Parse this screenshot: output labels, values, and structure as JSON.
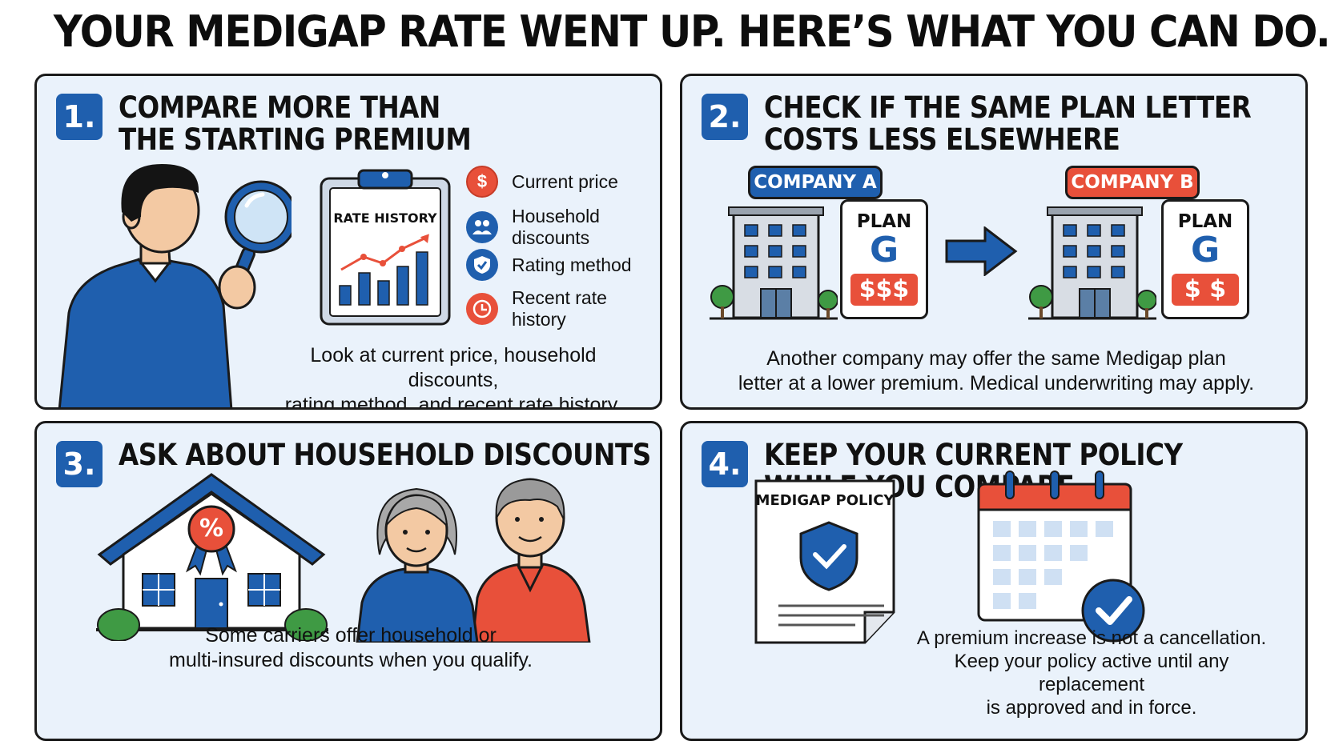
{
  "title": "YOUR MEDIGAP RATE WENT UP. HERE’S WHAT YOU CAN DO.",
  "colors": {
    "accent_blue": "#1f5fae",
    "accent_red": "#e8503a",
    "panel_bg": "#eaf2fb",
    "green": "#3f9a44"
  },
  "panels": [
    {
      "number": "1.",
      "title_line1": "COMPARE MORE THAN",
      "title_line2": "THE STARTING PREMIUM",
      "clipboard_label": "RATE HISTORY",
      "legend": [
        {
          "icon": "dollar-icon",
          "glyph": "$",
          "label": "Current price",
          "color": "#e8503a"
        },
        {
          "icon": "people-icon",
          "glyph": "",
          "label": "Household discounts",
          "color": "#1f5fae"
        },
        {
          "icon": "shield-check-icon",
          "glyph": "",
          "label": "Rating method",
          "color": "#1f5fae"
        },
        {
          "icon": "clock-icon",
          "glyph": "",
          "label": "Recent rate history",
          "color": "#e8503a"
        }
      ],
      "caption_line1": "Look at current price, household discounts,",
      "caption_line2": "rating method, and recent rate history."
    },
    {
      "number": "2.",
      "title_line1": "CHECK IF THE SAME PLAN LETTER",
      "title_line2": "COSTS LESS ELSEWHERE",
      "company_a": "COMPANY A",
      "company_b": "COMPANY B",
      "plan_label": "PLAN",
      "plan_letter": "G",
      "price_a": "$$$",
      "price_b": "$ $",
      "caption_line1": "Another company may offer the same Medigap plan",
      "caption_line2": "letter at a lower premium. Medical underwriting may apply."
    },
    {
      "number": "3.",
      "title_line1": "ASK ABOUT HOUSEHOLD DISCOUNTS",
      "badge_glyph": "%",
      "caption_line1": "Some carriers offer household or",
      "caption_line2": "multi-insured discounts when you qualify."
    },
    {
      "number": "4.",
      "title_line1": "KEEP YOUR CURRENT POLICY",
      "title_line2": "WHILE YOU COMPARE",
      "document_label": "MEDIGAP POLICY",
      "caption_line1": "A premium increase is not a cancellation.",
      "caption_line2": "Keep your policy active until any replacement",
      "caption_line3": "is approved and in force."
    }
  ]
}
